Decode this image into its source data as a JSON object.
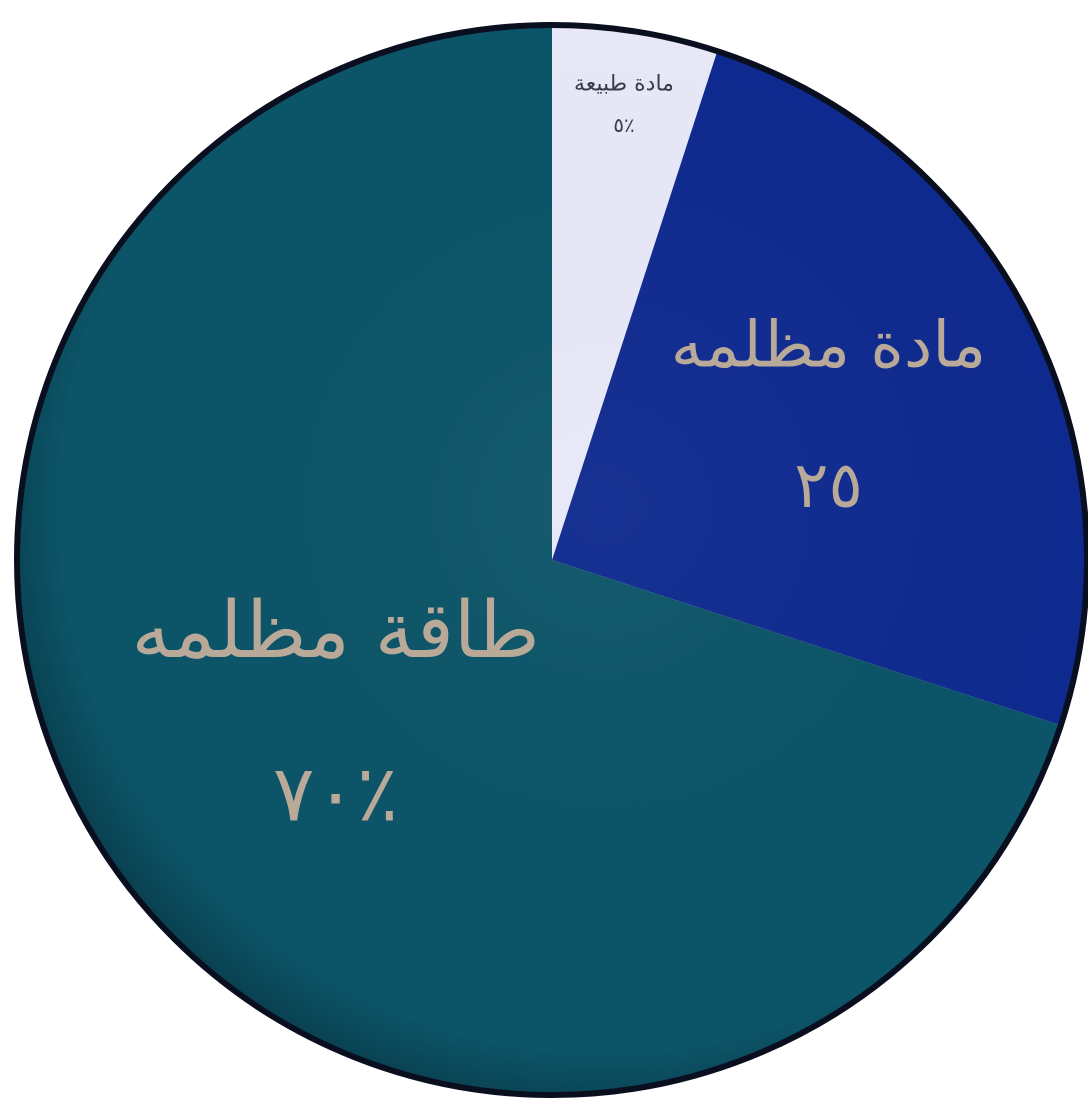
{
  "chart_data": {
    "type": "pie",
    "start_angle_deg": 0,
    "direction": "clockwise",
    "slices": [
      {
        "label": "مادة طبيعة",
        "value_label": "٥٪",
        "value": 5,
        "color": "#e8e8f8"
      },
      {
        "label": "مادة مظلمه",
        "value_label": "٢٥",
        "value": 25,
        "color": "#0f2a8f"
      },
      {
        "label": "طاقة مظلمه",
        "value_label": "٧٠٪",
        "value": 70,
        "color": "#0c5468"
      }
    ],
    "legend": "none",
    "grid": false
  }
}
